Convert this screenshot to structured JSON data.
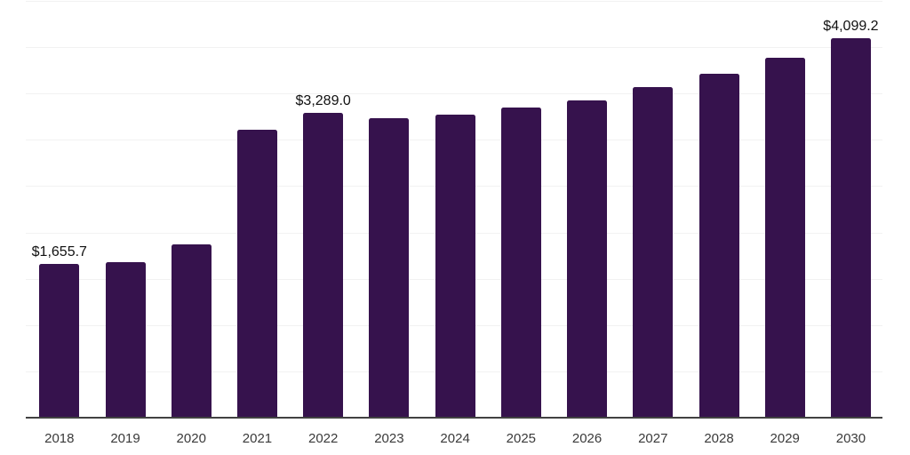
{
  "chart_data": {
    "type": "bar",
    "title": "",
    "xlabel": "",
    "ylabel": "",
    "categories": [
      "2018",
      "2019",
      "2020",
      "2021",
      "2022",
      "2023",
      "2024",
      "2025",
      "2026",
      "2027",
      "2028",
      "2029",
      "2030"
    ],
    "values": [
      1655.7,
      1683,
      1871,
      3108,
      3289.0,
      3237,
      3276,
      3347,
      3424,
      3567,
      3711,
      3887,
      4099.2
    ],
    "data_labels": {
      "2018": "$1,655.7",
      "2022": "$3,289.0",
      "2030": "$4,099.2"
    },
    "labeled_indices": [
      0,
      4,
      12
    ],
    "ylim": [
      0,
      4500
    ],
    "grid": {
      "horizontal": true,
      "step": 500,
      "vertical": false
    },
    "y_axis_tick_labels_visible": false,
    "legend_position": "none"
  },
  "style": {
    "bar_color": "#36124D",
    "gridline_color": "#f2f2f2",
    "axis_line_color": "#424242",
    "data_label_color": "#111111",
    "tick_label_color": "#3a3a3a",
    "background_color": "#ffffff"
  }
}
